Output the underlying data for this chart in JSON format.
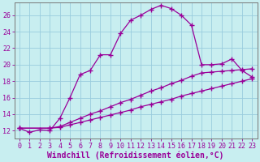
{
  "xlabel": "Windchill (Refroidissement éolien,°C)",
  "background_color": "#c8eef0",
  "line_color": "#990099",
  "grid_color": "#99ccdd",
  "xlim": [
    -0.5,
    23.5
  ],
  "ylim": [
    11.0,
    27.5
  ],
  "xticks": [
    0,
    1,
    2,
    3,
    4,
    5,
    6,
    7,
    8,
    9,
    10,
    11,
    12,
    13,
    14,
    15,
    16,
    17,
    18,
    19,
    20,
    21,
    22,
    23
  ],
  "yticks": [
    12,
    14,
    16,
    18,
    20,
    22,
    24,
    26
  ],
  "curve1_x": [
    0,
    1,
    2,
    3,
    4,
    5,
    6,
    7,
    8,
    9,
    10,
    11,
    12,
    13,
    14,
    15,
    16,
    17,
    18,
    19,
    20,
    21,
    22,
    23
  ],
  "curve1_y": [
    12.3,
    11.8,
    12.1,
    12.0,
    13.5,
    16.0,
    18.8,
    19.3,
    21.2,
    21.2,
    23.8,
    25.4,
    26.0,
    26.7,
    27.2,
    26.8,
    26.0,
    24.8,
    20.0,
    20.0,
    20.1,
    20.7,
    19.3,
    18.5
  ],
  "line2_x": [
    0,
    3,
    4,
    5,
    6,
    7,
    8,
    9,
    10,
    11,
    12,
    13,
    14,
    15,
    16,
    17,
    18,
    19,
    20,
    21,
    22,
    23
  ],
  "line2_y": [
    12.3,
    12.3,
    12.5,
    13.0,
    13.5,
    14.0,
    14.4,
    14.9,
    15.4,
    15.8,
    16.3,
    16.8,
    17.2,
    17.7,
    18.1,
    18.6,
    19.0,
    19.1,
    19.2,
    19.3,
    19.4,
    19.5
  ],
  "line3_x": [
    0,
    3,
    4,
    5,
    6,
    7,
    8,
    9,
    10,
    11,
    12,
    13,
    14,
    15,
    16,
    17,
    18,
    19,
    20,
    21,
    22,
    23
  ],
  "line3_y": [
    12.3,
    12.3,
    12.4,
    12.7,
    13.0,
    13.3,
    13.6,
    13.9,
    14.2,
    14.5,
    14.9,
    15.2,
    15.5,
    15.8,
    16.2,
    16.5,
    16.8,
    17.1,
    17.4,
    17.7,
    18.0,
    18.3
  ],
  "marker": "+",
  "markersize": 4,
  "linewidth": 0.9,
  "fontsize_xlabel": 7.0,
  "fontsize_ticks": 6.0
}
